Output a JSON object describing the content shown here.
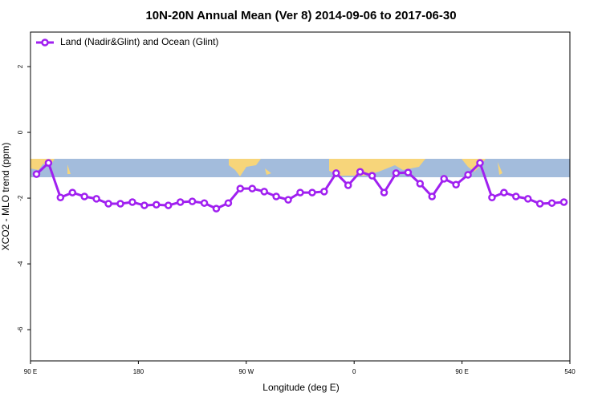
{
  "chart_data": {
    "type": "line",
    "title": "10N-20N Annual Mean (Ver 8)   2014-09-06 to 2017-06-30",
    "x_label": "Longitude (deg E)",
    "y_label": "XCO2 - MLO trend (ppm)",
    "x": [
      95,
      105,
      115,
      125,
      135,
      145,
      155,
      165,
      175,
      185,
      195,
      205,
      215,
      225,
      235,
      245,
      255,
      265,
      275,
      285,
      295,
      305,
      315,
      325,
      335,
      345,
      355,
      365,
      375,
      385,
      395,
      405,
      415,
      425,
      435,
      445,
      455,
      465,
      475,
      485,
      495,
      505,
      515,
      525,
      535
    ],
    "series": [
      {
        "name": "Land (Nadir&Glint) and Ocean (Glint)",
        "color": "#a020f0",
        "values": [
          -1.27,
          -0.93,
          -1.98,
          -1.83,
          -1.95,
          -2.02,
          -2.17,
          -2.17,
          -2.12,
          -2.22,
          -2.2,
          -2.22,
          -2.12,
          -2.1,
          -2.15,
          -2.32,
          -2.15,
          -1.71,
          -1.71,
          -1.8,
          -1.95,
          -2.05,
          -1.83,
          -1.83,
          -1.8,
          -1.24,
          -1.61,
          -1.2,
          -1.32,
          -1.83,
          -1.24,
          -1.22,
          -1.56,
          -1.95,
          -1.41,
          -1.59,
          -1.29,
          -0.93,
          -1.98,
          -1.83,
          -1.95,
          -2.02,
          -2.17,
          -2.15,
          -2.12
        ]
      }
    ],
    "xlim": [
      90,
      540
    ],
    "xticks": [
      {
        "value": 90,
        "label": "90 E"
      },
      180,
      {
        "value": 270,
        "label": "90 W"
      },
      {
        "value": 360,
        "label": "0"
      },
      {
        "value": 450,
        "label": "90 E"
      },
      540
    ],
    "ylim": [
      -6.95,
      3.05
    ],
    "yticks": [
      -6,
      -4,
      -2,
      0,
      2
    ],
    "legend": "top-left"
  }
}
